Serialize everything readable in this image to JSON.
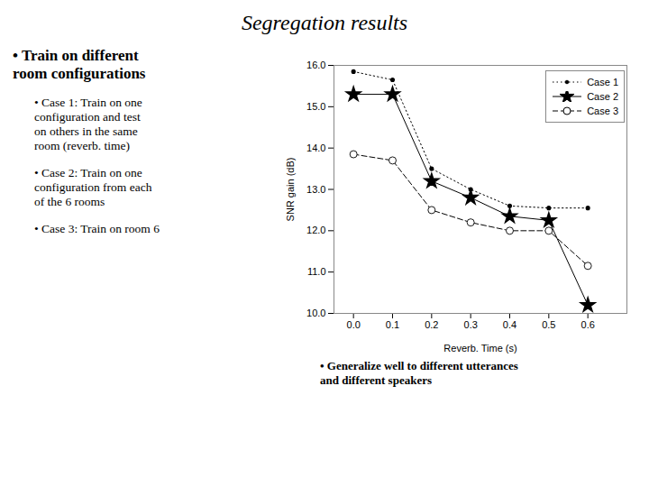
{
  "chart_data": {
    "type": "line",
    "title": "Segregation results",
    "x": [
      0,
      0.1,
      0.2,
      0.3,
      0.4,
      0.5,
      0.6
    ],
    "series": [
      {
        "name": "Case 1",
        "color": "black",
        "line_style": "dotted",
        "marker": "dot",
        "values": [
          15.85,
          15.65,
          13.5,
          13.0,
          12.6,
          12.55,
          12.55
        ]
      },
      {
        "name": "Case 2",
        "color": "black",
        "line_style": "solid",
        "marker": "star",
        "values": [
          15.3,
          15.3,
          13.2,
          12.8,
          12.35,
          12.25,
          10.2
        ]
      },
      {
        "name": "Case 3",
        "color": "black",
        "line_style": "dashed",
        "marker": "circle",
        "values": [
          13.85,
          13.7,
          12.5,
          12.2,
          12.0,
          12.0,
          11.15
        ]
      }
    ],
    "xlabel": "Reverb. Time (s)",
    "ylabel": "SNR gain (dB)",
    "xlim": [
      -0.05,
      0.7
    ],
    "ylim": [
      10,
      16
    ],
    "xticks": [
      0,
      0.1,
      0.2,
      0.3,
      0.4,
      0.5,
      0.6
    ],
    "yticks": [
      10,
      11,
      12,
      13,
      14,
      15,
      16
    ],
    "legend": "upper right",
    "grid": false,
    "annotations": [
      "• Train on different\nroom configurations",
      "• Case 1: Train on one\nconfiguration and test\non others in the same\nroom (reverb. time)",
      "• Case 2: Train on one\nconfiguration from each\nof the 6 rooms",
      "• Case 3: Train on room 6",
      "• Generalize well to different utterances\nand different speakers"
    ]
  }
}
